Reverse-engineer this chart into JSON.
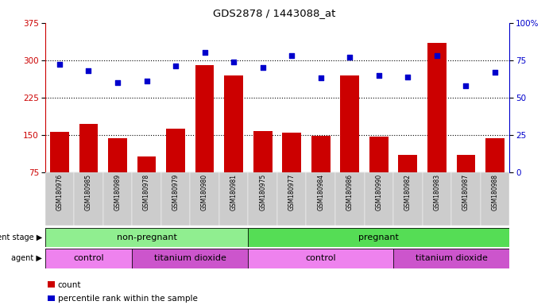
{
  "title": "GDS2878 / 1443088_at",
  "samples": [
    "GSM180976",
    "GSM180985",
    "GSM180989",
    "GSM180978",
    "GSM180979",
    "GSM180980",
    "GSM180981",
    "GSM180975",
    "GSM180977",
    "GSM180984",
    "GSM180986",
    "GSM180990",
    "GSM180982",
    "GSM180983",
    "GSM180987",
    "GSM180988"
  ],
  "counts": [
    157,
    172,
    144,
    107,
    163,
    290,
    270,
    158,
    155,
    148,
    270,
    147,
    110,
    335,
    110,
    143
  ],
  "percentiles": [
    72,
    68,
    60,
    61,
    71,
    80,
    74,
    70,
    78,
    63,
    77,
    65,
    64,
    78,
    58,
    67
  ],
  "ylim_left": [
    75,
    375
  ],
  "ylim_right": [
    0,
    100
  ],
  "yticks_left": [
    75,
    150,
    225,
    300,
    375
  ],
  "yticks_right": [
    0,
    25,
    50,
    75,
    100
  ],
  "bar_color": "#cc0000",
  "dot_color": "#0000cc",
  "development_stage_groups": [
    {
      "label": "non-pregnant",
      "start": 0,
      "end": 7,
      "color": "#90ee90"
    },
    {
      "label": "pregnant",
      "start": 7,
      "end": 16,
      "color": "#55dd55"
    }
  ],
  "agent_groups": [
    {
      "label": "control",
      "start": 0,
      "end": 3,
      "color": "#ee82ee"
    },
    {
      "label": "titanium dioxide",
      "start": 3,
      "end": 7,
      "color": "#cc55cc"
    },
    {
      "label": "control",
      "start": 7,
      "end": 12,
      "color": "#ee82ee"
    },
    {
      "label": "titanium dioxide",
      "start": 12,
      "end": 16,
      "color": "#cc55cc"
    }
  ],
  "legend_count_label": "count",
  "legend_pct_label": "percentile rank within the sample",
  "dev_stage_label": "development stage",
  "agent_label": "agent"
}
